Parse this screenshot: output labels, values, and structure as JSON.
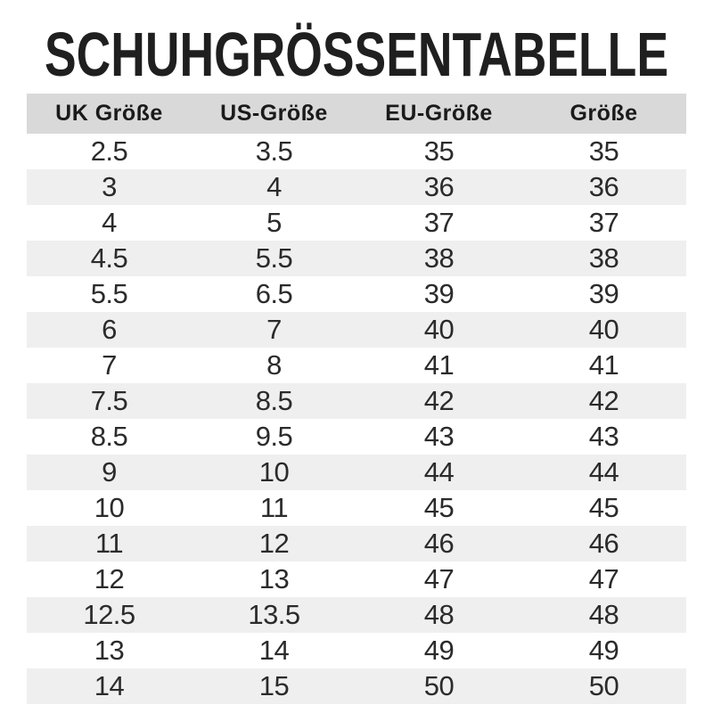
{
  "title": "SCHUHGRÖSSENTABELLE",
  "chart_data": {
    "type": "table",
    "title": "SCHUHGRÖSSENTABELLE",
    "columns": [
      "UK Größe",
      "US-Größe",
      "EU-Größe",
      "Größe"
    ],
    "rows": [
      [
        "2.5",
        "3.5",
        "35",
        "35"
      ],
      [
        "3",
        "4",
        "36",
        "36"
      ],
      [
        "4",
        "5",
        "37",
        "37"
      ],
      [
        "4.5",
        "5.5",
        "38",
        "38"
      ],
      [
        "5.5",
        "6.5",
        "39",
        "39"
      ],
      [
        "6",
        "7",
        "40",
        "40"
      ],
      [
        "7",
        "8",
        "41",
        "41"
      ],
      [
        "7.5",
        "8.5",
        "42",
        "42"
      ],
      [
        "8.5",
        "9.5",
        "43",
        "43"
      ],
      [
        "9",
        "10",
        "44",
        "44"
      ],
      [
        "10",
        "11",
        "45",
        "45"
      ],
      [
        "11",
        "12",
        "46",
        "46"
      ],
      [
        "12",
        "13",
        "47",
        "47"
      ],
      [
        "12.5",
        "13.5",
        "48",
        "48"
      ],
      [
        "13",
        "14",
        "49",
        "49"
      ],
      [
        "14",
        "15",
        "50",
        "50"
      ]
    ],
    "layout": {
      "alternating_rows": true,
      "first_data_row_background": "white"
    }
  },
  "colors": {
    "page_bg": "#ffffff",
    "title_text": "#1f1f1f",
    "header_bg": "#d9d9d9",
    "header_text": "#1a1a1a",
    "row_alt_bg": "#efefef",
    "cell_text": "#2b2b2b"
  }
}
